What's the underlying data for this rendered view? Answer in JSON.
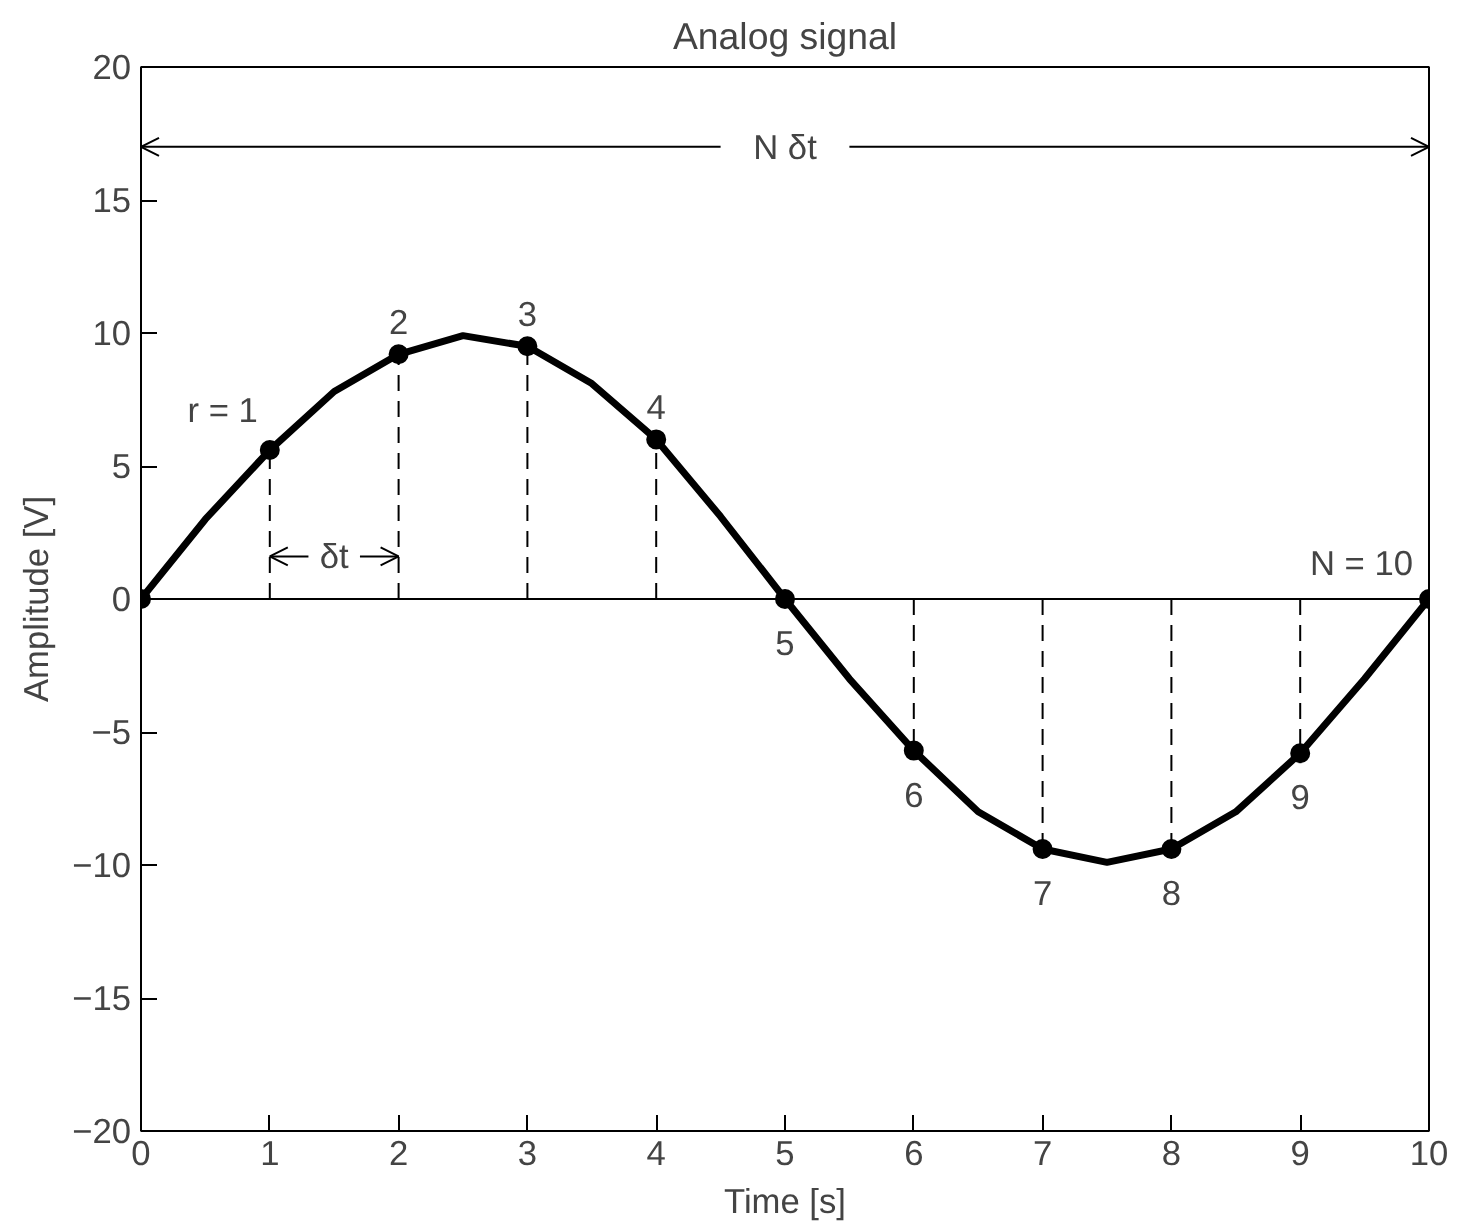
{
  "chart_data": {
    "type": "line",
    "title": "Analog signal",
    "xlabel": "Time [s]",
    "ylabel": "Amplitude [V]",
    "xlim": [
      0,
      10
    ],
    "ylim": [
      -20,
      20
    ],
    "xticks": [
      0,
      1,
      2,
      3,
      4,
      5,
      6,
      7,
      8,
      9,
      10
    ],
    "yticks": [
      -20,
      -15,
      -10,
      -5,
      0,
      5,
      10,
      15,
      20
    ],
    "grid": false,
    "series": [
      {
        "color": "#000000",
        "marker": "none",
        "line_style": "solid",
        "x": [
          0,
          0.5,
          1,
          1.5,
          2,
          2.5,
          3,
          3.5,
          4,
          4.5,
          5,
          5.5,
          6,
          6.5,
          7,
          7.5,
          8,
          8.5,
          9,
          9.5,
          10
        ],
        "values": [
          0,
          3.0,
          5.6,
          7.8,
          9.2,
          9.9,
          9.5,
          8.1,
          6.0,
          3.1,
          0,
          -3.0,
          -5.7,
          -8.0,
          -9.4,
          -9.9,
          -9.4,
          -8.0,
          -5.8,
          -3.0,
          0
        ]
      },
      {
        "type": "lollipop",
        "color": "#000000",
        "marker": "circle",
        "line_style": "dashed",
        "x": [
          0,
          1,
          2,
          3,
          4,
          5,
          6,
          7,
          8,
          9,
          10
        ],
        "values": [
          0,
          5.6,
          9.2,
          9.5,
          6.0,
          0,
          -5.7,
          -9.4,
          -9.4,
          -5.8,
          0
        ]
      }
    ],
    "ref_lines": [
      {
        "axis": "y",
        "value": 0,
        "color": "#000000"
      }
    ],
    "annotations": [
      {
        "text": "r = 1",
        "x": 1,
        "y": 5.6
      },
      {
        "text": "2",
        "x": 2,
        "y": 9.2
      },
      {
        "text": "3",
        "x": 3,
        "y": 9.5
      },
      {
        "text": "4",
        "x": 4,
        "y": 6.0
      },
      {
        "text": "5",
        "x": 5,
        "y": 0
      },
      {
        "text": "6",
        "x": 6,
        "y": -5.7
      },
      {
        "text": "7",
        "x": 7,
        "y": -9.4
      },
      {
        "text": "8",
        "x": 8,
        "y": -9.4
      },
      {
        "text": "9",
        "x": 9,
        "y": -5.8
      },
      {
        "text": "N = 10",
        "x": 10,
        "y": 0
      },
      "δt",
      "N δt"
    ]
  }
}
